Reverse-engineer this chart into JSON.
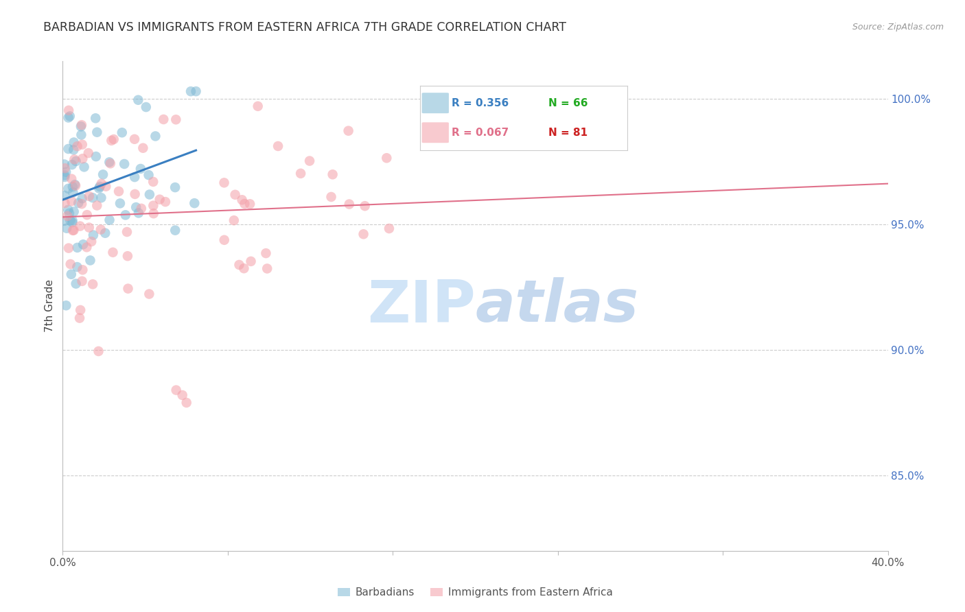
{
  "title": "BARBADIAN VS IMMIGRANTS FROM EASTERN AFRICA 7TH GRADE CORRELATION CHART",
  "source": "Source: ZipAtlas.com",
  "ylabel": "7th Grade",
  "right_ytick_vals": [
    1.0,
    0.95,
    0.9,
    0.85
  ],
  "right_ytick_labels": [
    "100.0%",
    "95.0%",
    "90.0%",
    "85.0%"
  ],
  "legend_blue_r": "R = 0.356",
  "legend_blue_n": "N = 66",
  "legend_pink_r": "R = 0.067",
  "legend_pink_n": "N = 81",
  "blue_color": "#7EB8D4",
  "pink_color": "#F4A0A8",
  "blue_line_color": "#3A7FC1",
  "pink_line_color": "#E0708A",
  "title_color": "#333333",
  "right_axis_color": "#4472C4",
  "legend_r_blue_color": "#3A7FC1",
  "legend_n_blue_color": "#22AA22",
  "legend_r_pink_color": "#E0708A",
  "legend_n_pink_color": "#CC2222",
  "watermark_color": "#D0E4F7",
  "background_color": "#ffffff",
  "xlim": [
    0.0,
    0.4
  ],
  "ylim": [
    0.82,
    1.015
  ]
}
